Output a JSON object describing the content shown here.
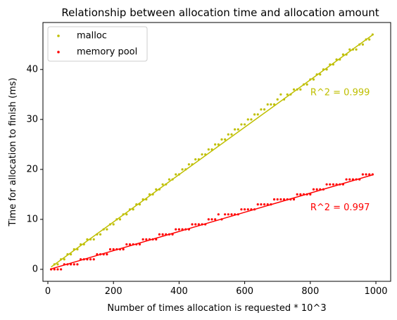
{
  "chart_data": {
    "type": "scatter",
    "title": "Relationship between allocation time and allocation amount",
    "xlabel": "Number of times allocation is requested * 10^3",
    "ylabel": "Time for allocation to finish (ms)",
    "xlim": [
      -15,
      1045
    ],
    "ylim": [
      -2.4,
      49.4
    ],
    "xticks": [
      0,
      200,
      400,
      600,
      800,
      1000
    ],
    "yticks": [
      0,
      10,
      20,
      30,
      40
    ],
    "grid": false,
    "legend_position": "top-left",
    "series": [
      {
        "name": "malloc",
        "color": "#bfbf00",
        "fit": {
          "slope": 0.0474,
          "intercept": 0.0,
          "x_range": [
            10,
            990
          ]
        },
        "x": [
          10,
          20,
          30,
          40,
          50,
          60,
          70,
          80,
          90,
          100,
          110,
          120,
          130,
          140,
          150,
          160,
          170,
          180,
          190,
          200,
          210,
          220,
          230,
          240,
          250,
          260,
          270,
          280,
          290,
          300,
          310,
          320,
          330,
          340,
          350,
          360,
          370,
          380,
          390,
          400,
          410,
          420,
          430,
          440,
          450,
          460,
          470,
          480,
          490,
          500,
          510,
          520,
          530,
          540,
          550,
          560,
          570,
          580,
          590,
          600,
          610,
          620,
          630,
          640,
          650,
          660,
          670,
          680,
          690,
          700,
          710,
          720,
          730,
          740,
          750,
          760,
          770,
          780,
          790,
          800,
          810,
          820,
          830,
          840,
          850,
          860,
          870,
          880,
          890,
          900,
          910,
          920,
          930,
          940,
          950,
          960,
          970,
          980,
          990
        ],
        "y": [
          0,
          1,
          1,
          2,
          2,
          3,
          3,
          4,
          4,
          5,
          5,
          6,
          6,
          6,
          7,
          7,
          8,
          8,
          9,
          9,
          10,
          10,
          11,
          11,
          12,
          12,
          13,
          13,
          14,
          14,
          15,
          15,
          16,
          16,
          17,
          17,
          18,
          18,
          19,
          19,
          20,
          20,
          21,
          21,
          22,
          22,
          23,
          23,
          24,
          24,
          25,
          25,
          26,
          26,
          27,
          27,
          28,
          28,
          29,
          29,
          30,
          30,
          31,
          31,
          32,
          32,
          33,
          33,
          33,
          34,
          35,
          34,
          35,
          35,
          36,
          36,
          36,
          37,
          37,
          38,
          38,
          39,
          39,
          40,
          40,
          41,
          41,
          42,
          42,
          43,
          43,
          44,
          44,
          44,
          45,
          45,
          46,
          46,
          47
        ]
      },
      {
        "name": "memory pool",
        "color": "#ff0000",
        "fit": {
          "slope": 0.0192,
          "intercept": -0.1,
          "x_range": [
            10,
            990
          ]
        },
        "x": [
          10,
          20,
          30,
          40,
          50,
          60,
          70,
          80,
          90,
          100,
          110,
          120,
          130,
          140,
          150,
          160,
          170,
          180,
          190,
          200,
          210,
          220,
          230,
          240,
          250,
          260,
          270,
          280,
          290,
          300,
          310,
          320,
          330,
          340,
          350,
          360,
          370,
          380,
          390,
          400,
          410,
          420,
          430,
          440,
          450,
          460,
          470,
          480,
          490,
          500,
          510,
          520,
          530,
          540,
          550,
          560,
          570,
          580,
          590,
          600,
          610,
          620,
          630,
          640,
          650,
          660,
          670,
          680,
          690,
          700,
          710,
          720,
          730,
          740,
          750,
          760,
          770,
          780,
          790,
          800,
          810,
          820,
          830,
          840,
          850,
          860,
          870,
          880,
          890,
          900,
          910,
          920,
          930,
          940,
          950,
          960,
          970,
          980,
          990
        ],
        "y": [
          0,
          0,
          0,
          0,
          1,
          1,
          1,
          1,
          1,
          2,
          2,
          2,
          2,
          2,
          3,
          3,
          3,
          3,
          4,
          4,
          4,
          4,
          4,
          5,
          5,
          5,
          5,
          5,
          6,
          6,
          6,
          6,
          6,
          7,
          7,
          7,
          7,
          7,
          8,
          8,
          8,
          8,
          8,
          9,
          9,
          9,
          9,
          9,
          10,
          10,
          10,
          11,
          10,
          11,
          11,
          11,
          11,
          11,
          12,
          12,
          12,
          12,
          12,
          13,
          13,
          13,
          13,
          13,
          14,
          14,
          14,
          14,
          14,
          14,
          14,
          15,
          15,
          15,
          15,
          15,
          16,
          16,
          16,
          16,
          17,
          17,
          17,
          17,
          17,
          17,
          18,
          18,
          18,
          18,
          18,
          19,
          19,
          19,
          19
        ]
      }
    ],
    "annotations": [
      {
        "text": "R^2 = 0.999",
        "x": 800,
        "y": 35.3,
        "color": "#bfbf00"
      },
      {
        "text": "R^2 = 0.997",
        "x": 800,
        "y": 12.3,
        "color": "#ff0000"
      }
    ]
  }
}
